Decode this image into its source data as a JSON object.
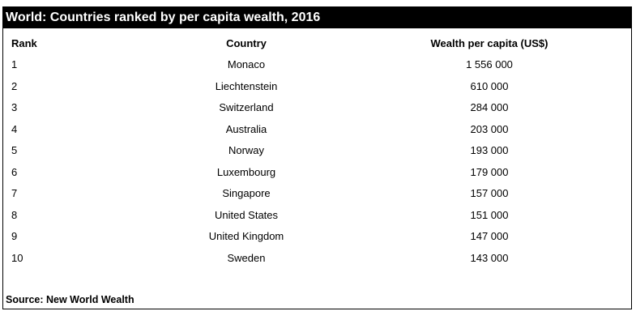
{
  "title": "World: Countries ranked by per capita wealth, 2016",
  "table": {
    "headers": {
      "rank": "Rank",
      "country": "Country",
      "wealth": "Wealth per capita (US$)"
    },
    "rows": [
      {
        "rank": "1",
        "country": "Monaco",
        "wealth": "1 556 000"
      },
      {
        "rank": "2",
        "country": "Liechtenstein",
        "wealth": "610 000"
      },
      {
        "rank": "3",
        "country": "Switzerland",
        "wealth": "284 000"
      },
      {
        "rank": "4",
        "country": "Australia",
        "wealth": "203 000"
      },
      {
        "rank": "5",
        "country": "Norway",
        "wealth": "193 000"
      },
      {
        "rank": "6",
        "country": "Luxembourg",
        "wealth": "179 000"
      },
      {
        "rank": "7",
        "country": "Singapore",
        "wealth": "157 000"
      },
      {
        "rank": "8",
        "country": "United States",
        "wealth": "151 000"
      },
      {
        "rank": "9",
        "country": "United Kingdom",
        "wealth": "147 000"
      },
      {
        "rank": "10",
        "country": "Sweden",
        "wealth": "143 000"
      }
    ]
  },
  "source": "Source: New World Wealth"
}
